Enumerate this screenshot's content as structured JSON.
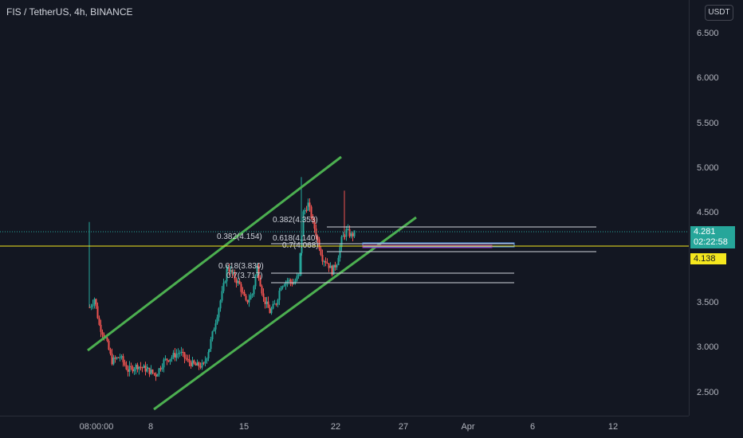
{
  "title": "FIS / TetherUS, 4h, BINANCE",
  "currency_button": "USDT",
  "price_axis": {
    "ticks": [
      "6.500",
      "6.000",
      "5.500",
      "5.000",
      "4.500",
      "3.500",
      "3.000",
      "2.500"
    ]
  },
  "time_axis": {
    "ticks": [
      "08:00:00",
      "8",
      "15",
      "22",
      "27",
      "Apr",
      "6",
      "12"
    ]
  },
  "current_price": {
    "value": "4.281",
    "countdown": "02:22:58"
  },
  "horizontal_line_price": "4.138",
  "fib_labels": [
    {
      "text": "0.382(4.353)"
    },
    {
      "text": "0.382(4.154)"
    },
    {
      "text": "0.618(4.140)"
    },
    {
      "text": "0.7(4.068)"
    },
    {
      "text": "0.618(3.830)"
    },
    {
      "text": "0.7(3.717)"
    }
  ],
  "colors": {
    "background": "#131722",
    "up": "#26a69a",
    "down": "#ef5350",
    "channel": "#4caf50",
    "yellow_line": "#f5e71e"
  }
}
